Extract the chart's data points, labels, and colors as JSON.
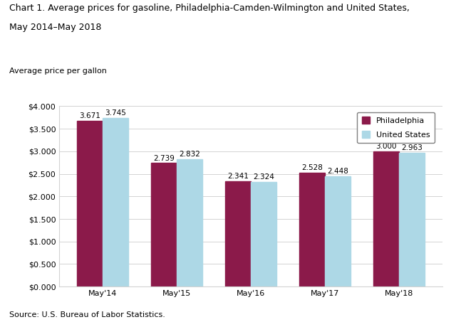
{
  "title_line1": "Chart 1. Average prices for gasoline, Philadelphia-Camden-Wilmington and United States,",
  "title_line2": "May 2014–May 2018",
  "ylabel": "Average price per gallon",
  "source": "Source: U.S. Bureau of Labor Statistics.",
  "categories": [
    "May'14",
    "May'15",
    "May'16",
    "May'17",
    "May'18"
  ],
  "philadelphia": [
    3.671,
    2.739,
    2.341,
    2.528,
    3.0
  ],
  "us": [
    3.745,
    2.832,
    2.324,
    2.448,
    2.963
  ],
  "philly_color": "#8B1A4A",
  "us_color": "#ADD8E6",
  "philly_hatch": "....",
  "us_hatch": "....",
  "ylim": [
    0,
    4.0
  ],
  "yticks": [
    0.0,
    0.5,
    1.0,
    1.5,
    2.0,
    2.5,
    3.0,
    3.5,
    4.0
  ],
  "legend_labels": [
    "Philadelphia",
    "United States"
  ],
  "bar_width": 0.35,
  "title_fontsize": 9,
  "label_fontsize": 8,
  "tick_fontsize": 8,
  "annot_fontsize": 7.5
}
